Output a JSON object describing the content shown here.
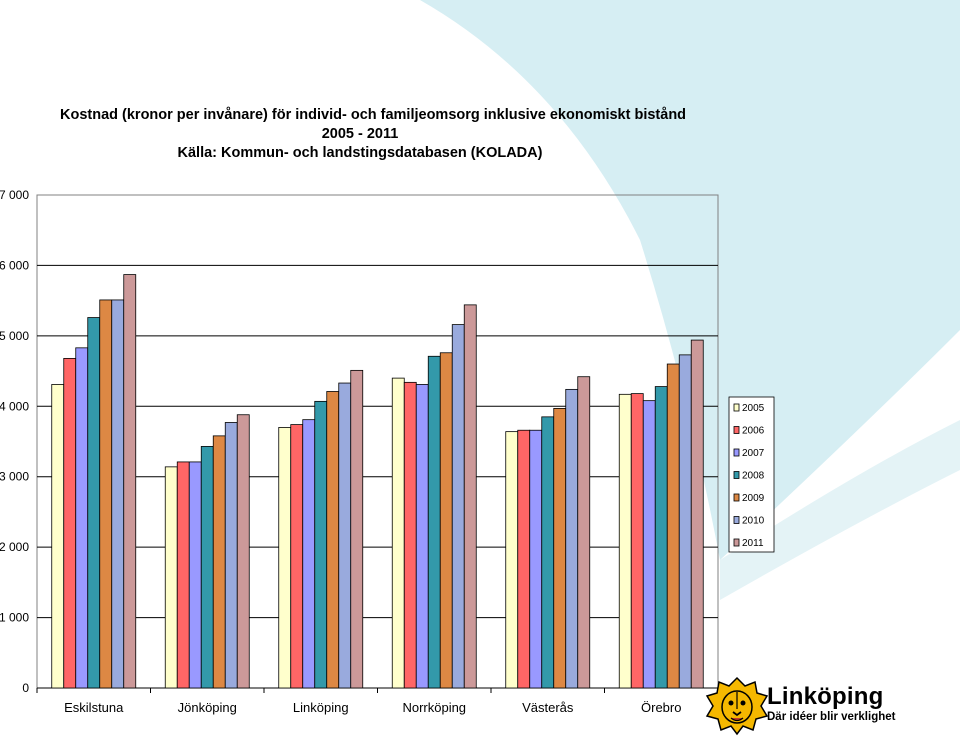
{
  "chart_data": {
    "type": "bar",
    "title_lines": [
      "Kostnad (kronor per invånare) för individ- och familjeomsorg inklusive ekonomiskt bistånd",
      "2005 - 2011",
      "Källa: Kommun- och landstingsdatabasen (KOLADA)"
    ],
    "categories": [
      "Eskilstuna",
      "Jönköping",
      "Linköping",
      "Norrköping",
      "Västerås",
      "Örebro"
    ],
    "series": [
      {
        "name": "2005",
        "color": "#FFFFCC",
        "values": [
          4310,
          3140,
          3700,
          4400,
          3640,
          4170
        ]
      },
      {
        "name": "2006",
        "color": "#FF6666",
        "values": [
          4680,
          3210,
          3740,
          4340,
          3660,
          4180
        ]
      },
      {
        "name": "2007",
        "color": "#9999FF",
        "values": [
          4830,
          3210,
          3810,
          4310,
          3660,
          4080
        ]
      },
      {
        "name": "2008",
        "color": "#3399AA",
        "values": [
          5260,
          3430,
          4070,
          4710,
          3850,
          4280
        ]
      },
      {
        "name": "2009",
        "color": "#DD8844",
        "values": [
          5510,
          3580,
          4210,
          4760,
          3970,
          4600
        ]
      },
      {
        "name": "2010",
        "color": "#99AADD",
        "values": [
          5510,
          3770,
          4330,
          5160,
          4240,
          4730
        ]
      },
      {
        "name": "2011",
        "color": "#CC9999",
        "values": [
          5870,
          3880,
          4510,
          5440,
          4420,
          4940
        ]
      }
    ],
    "y_ticks": [
      "0",
      "1 000",
      "2 000",
      "3 000",
      "4 000",
      "5 000",
      "6 000",
      "7 000"
    ],
    "ylim": [
      0,
      7000
    ],
    "grid": true,
    "legend_position": "right"
  },
  "logo": {
    "name": "Linköping",
    "slogan": "Där idéer blir verklighet",
    "icon": "lion-head-icon"
  },
  "colors": {
    "background_shape": "#D6EEF3",
    "plot_border": "#808080",
    "gridline": "#000000"
  }
}
